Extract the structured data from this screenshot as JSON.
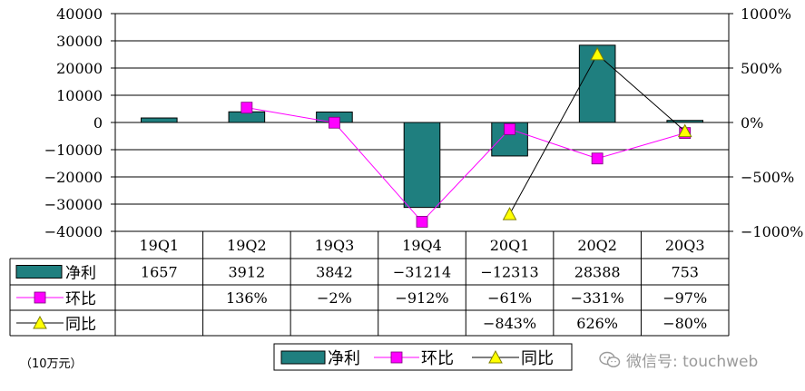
{
  "chart_data": {
    "type": "bar",
    "categories": [
      "19Q1",
      "19Q2",
      "19Q3",
      "19Q4",
      "20Q1",
      "20Q2",
      "20Q3"
    ],
    "series": [
      {
        "name": "净利",
        "type": "bar",
        "values": [
          1657,
          3912,
          3842,
          -31214,
          -12313,
          28388,
          753
        ],
        "labels": [
          "1657",
          "3912",
          "3842",
          "−31214",
          "−12313",
          "28388",
          "753"
        ],
        "color": "#1f7f7f"
      },
      {
        "name": "环比",
        "type": "line",
        "axis": "right",
        "values": [
          null,
          136,
          -2,
          -912,
          -61,
          -331,
          -97
        ],
        "labels": [
          "",
          "136%",
          "−2%",
          "−912%",
          "−61%",
          "−331%",
          "−97%"
        ],
        "color": "#ff00ff"
      },
      {
        "name": "同比",
        "type": "line",
        "axis": "right",
        "values": [
          null,
          null,
          null,
          null,
          -843,
          626,
          -80
        ],
        "labels": [
          "",
          "",
          "",
          "",
          "−843%",
          "626%",
          "−80%"
        ],
        "color": "#ffff00"
      }
    ],
    "y_left": {
      "min": -40000,
      "max": 40000,
      "step": 10000,
      "ticks": [
        "40000",
        "30000",
        "20000",
        "10000",
        "0",
        "−10000",
        "−20000",
        "−30000",
        "−40000"
      ]
    },
    "y_right": {
      "min": -1000,
      "max": 1000,
      "step": 500,
      "ticks": [
        "1000%",
        "500%",
        "0%",
        "−500%",
        "−1000%"
      ]
    },
    "grid": true,
    "legend_position": "bottom"
  },
  "unit_label": "（10万元）",
  "watermark": {
    "text": "微信号: touchweb",
    "icon": "wechat-logo-icon"
  }
}
